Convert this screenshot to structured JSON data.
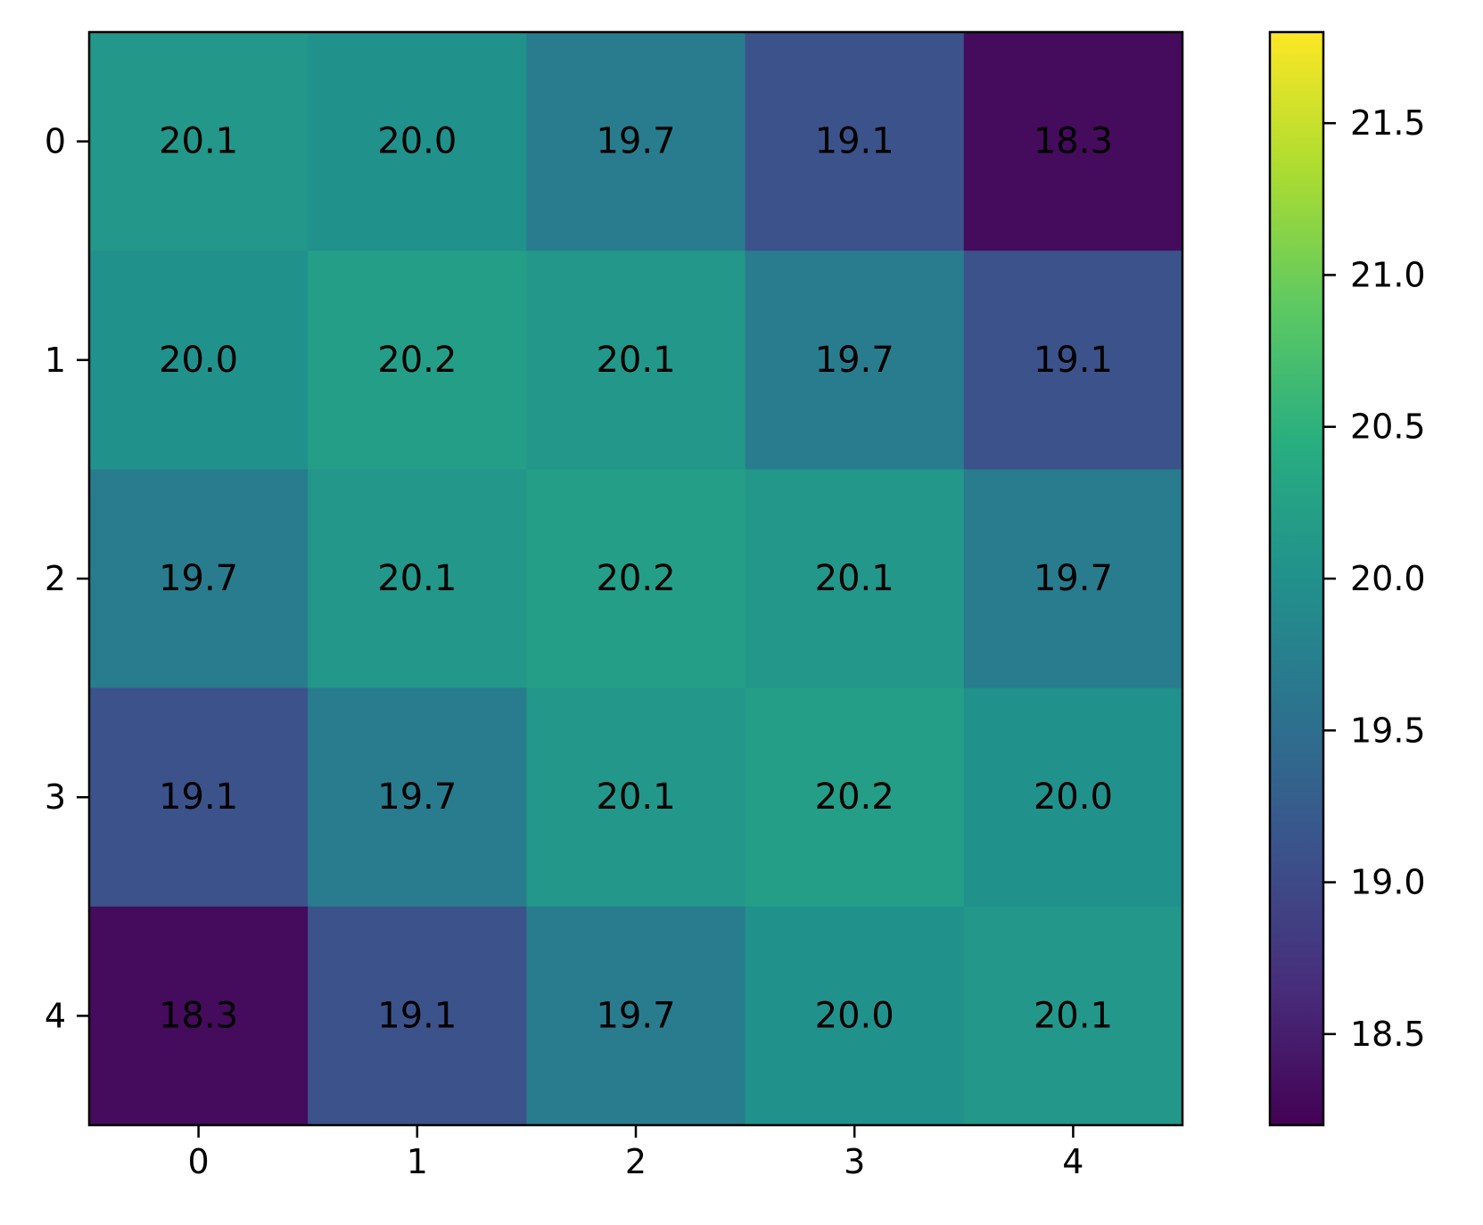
{
  "chart_data": {
    "type": "heatmap",
    "title": "",
    "xlabel": "",
    "ylabel": "",
    "x_categories": [
      "0",
      "1",
      "2",
      "3",
      "4"
    ],
    "y_categories": [
      "0",
      "1",
      "2",
      "3",
      "4"
    ],
    "values": [
      [
        20.1,
        20.0,
        19.7,
        19.1,
        18.3
      ],
      [
        20.0,
        20.2,
        20.1,
        19.7,
        19.1
      ],
      [
        19.7,
        20.1,
        20.2,
        20.1,
        19.7
      ],
      [
        19.1,
        19.7,
        20.1,
        20.2,
        20.0
      ],
      [
        18.3,
        19.1,
        19.7,
        20.0,
        20.1
      ]
    ],
    "cell_labels": [
      [
        "20.1",
        "20.0",
        "19.7",
        "19.1",
        "18.3"
      ],
      [
        "20.0",
        "20.2",
        "20.1",
        "19.7",
        "19.1"
      ],
      [
        "19.7",
        "20.1",
        "20.2",
        "20.1",
        "19.7"
      ],
      [
        "19.1",
        "19.7",
        "20.1",
        "20.2",
        "20.0"
      ],
      [
        "18.3",
        "19.1",
        "19.7",
        "20.0",
        "20.1"
      ]
    ],
    "colormap": "viridis",
    "color_range": [
      18.2,
      21.8
    ],
    "colorbar": {
      "ticks": [
        18.5,
        19.0,
        19.5,
        20.0,
        20.5,
        21.0,
        21.5
      ],
      "tick_labels": [
        "18.5",
        "19.0",
        "19.5",
        "20.0",
        "20.5",
        "21.0",
        "21.5"
      ]
    },
    "grid": false,
    "legend": "none"
  }
}
